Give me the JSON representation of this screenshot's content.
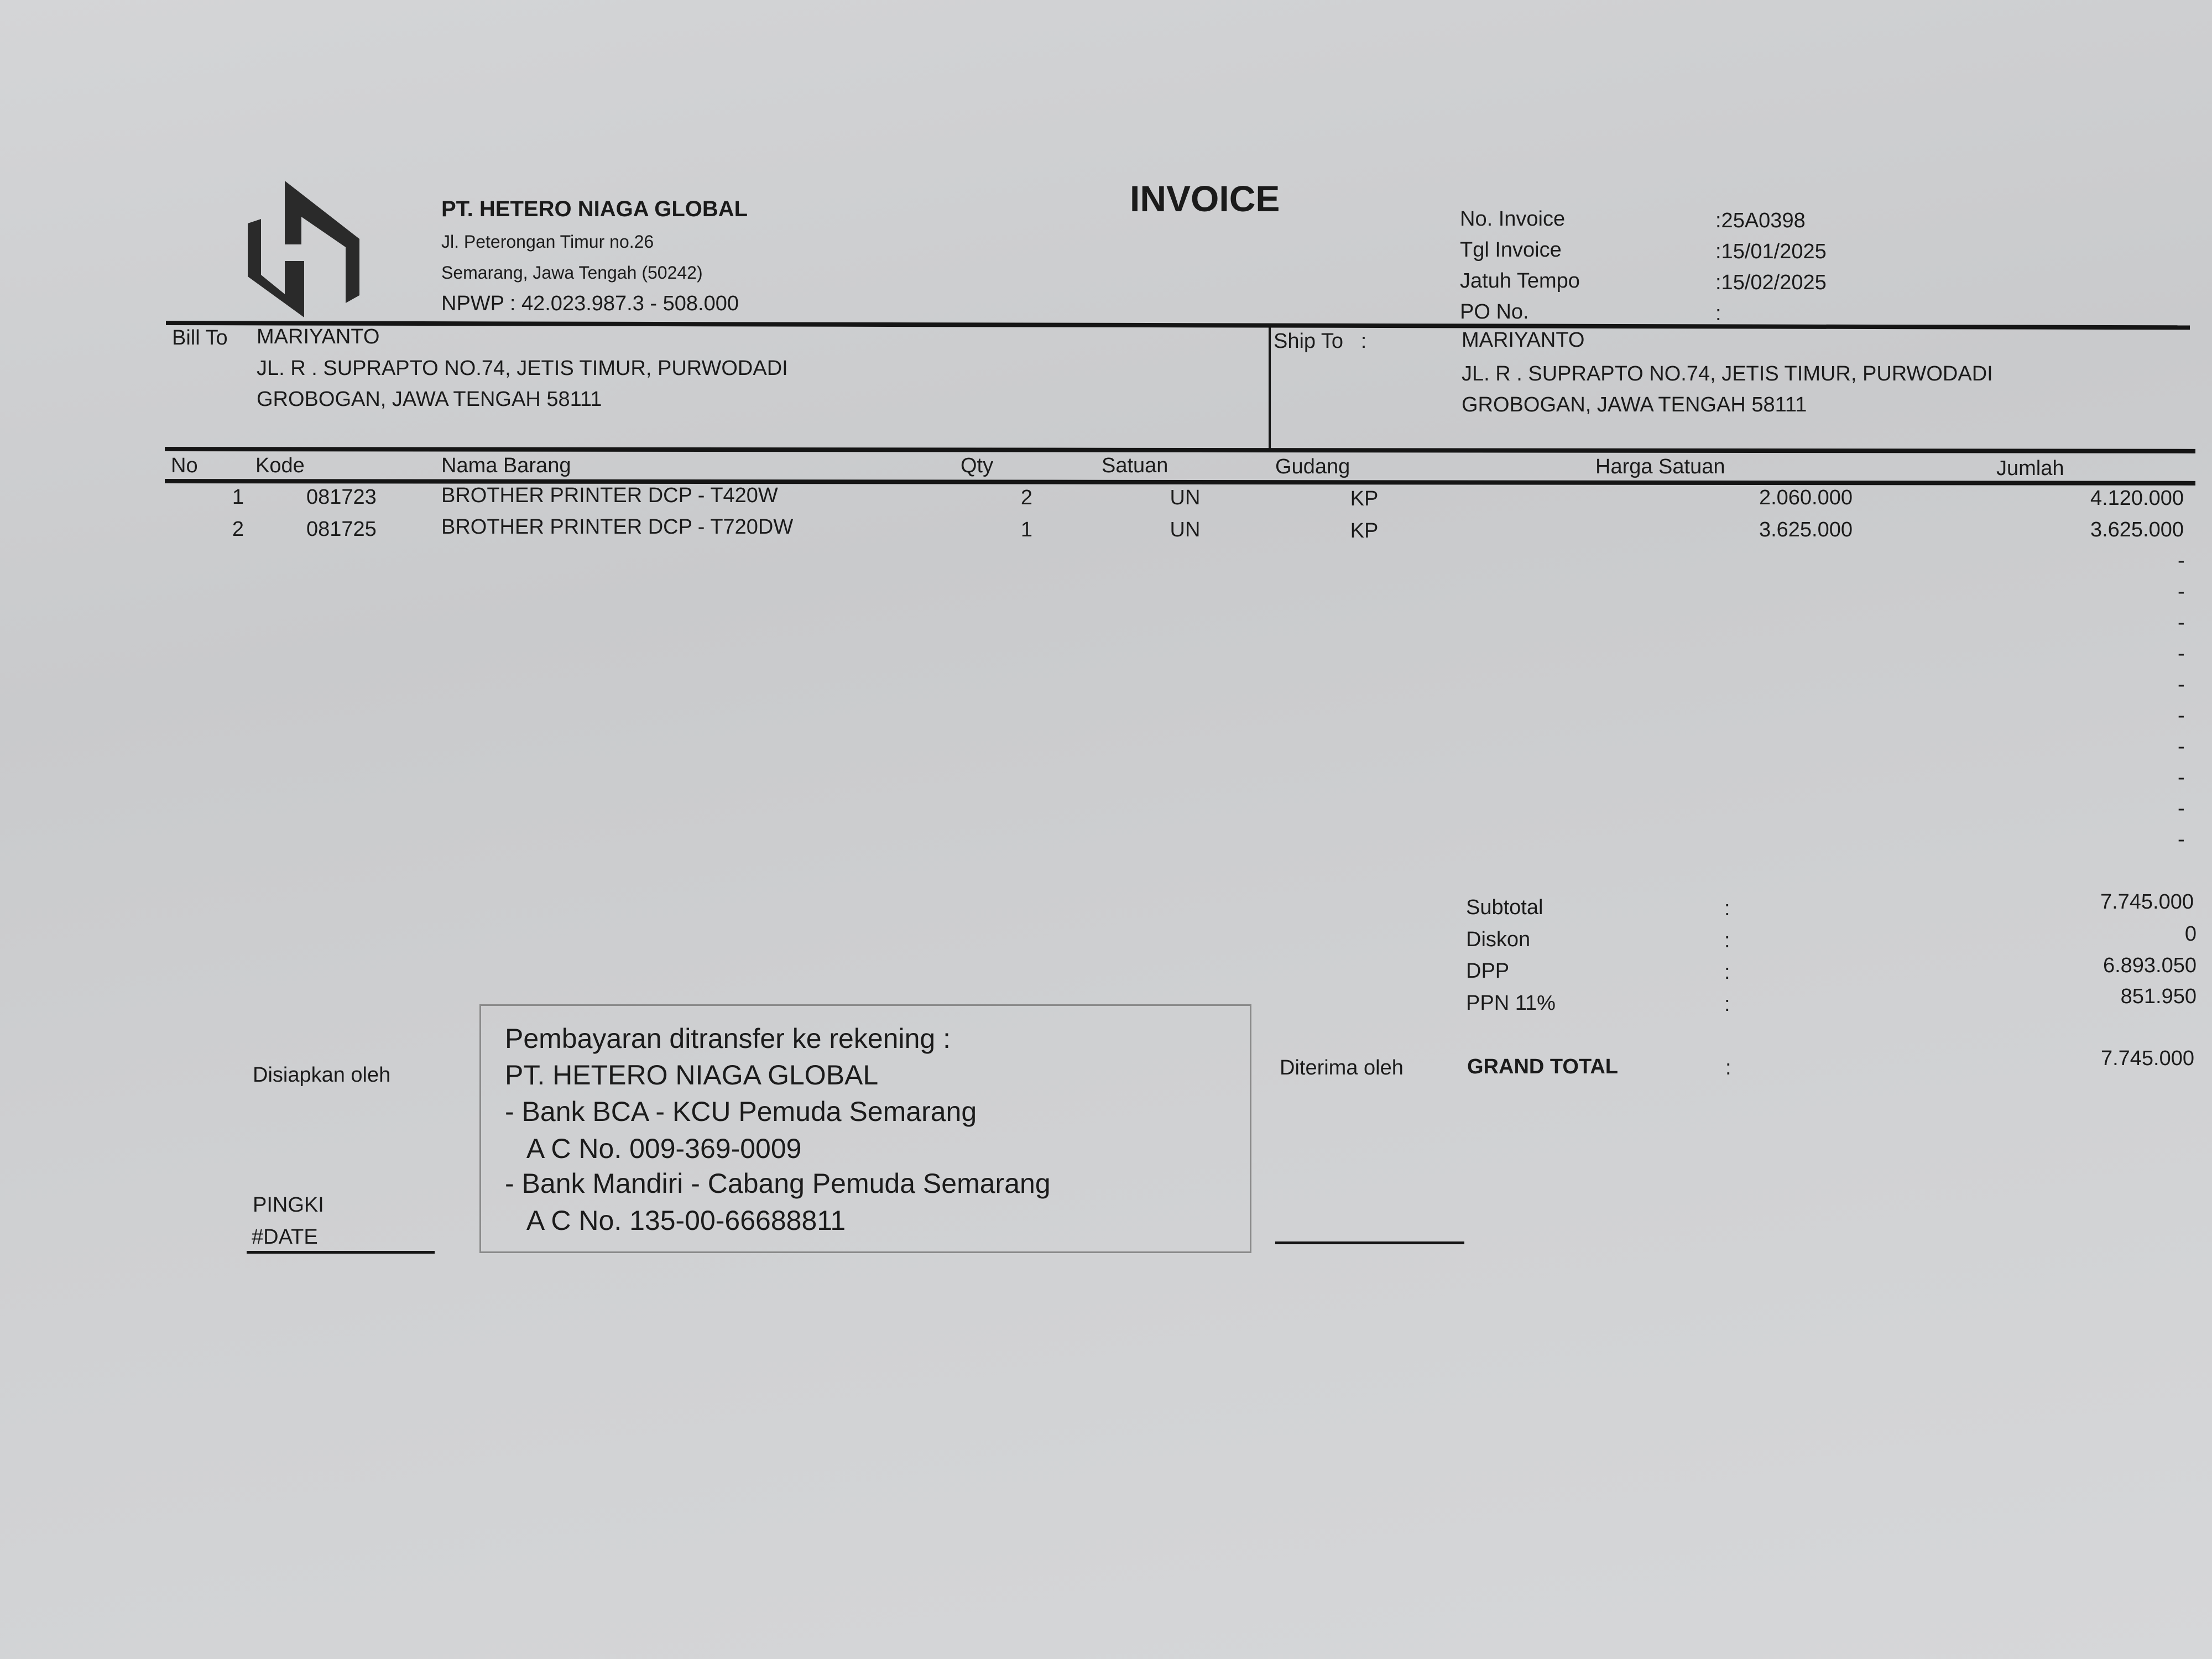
{
  "company": {
    "name": "PT. HETERO NIAGA GLOBAL",
    "address1": "Jl. Peterongan Timur no.26",
    "address2": "Semarang, Jawa Tengah (50242)",
    "npwp": "NPWP : 42.023.987.3 - 508.000",
    "logo_icon": "hexagon-h-logo"
  },
  "title": "INVOICE",
  "meta": [
    {
      "label": "No. Invoice",
      "value": ":25A0398"
    },
    {
      "label": "Tgl Invoice",
      "value": ":15/01/2025"
    },
    {
      "label": "Jatuh Tempo",
      "value": ":15/02/2025"
    },
    {
      "label": "PO No.",
      "value": ":"
    }
  ],
  "bill_to": {
    "label": "Bill To",
    "name": "MARIYANTO",
    "line1": "JL. R . SUPRAPTO NO.74, JETIS TIMUR, PURWODADI",
    "line2": "GROBOGAN, JAWA TENGAH 58111"
  },
  "ship_to": {
    "label": "Ship To   :",
    "name": "MARIYANTO",
    "line1": "JL. R . SUPRAPTO NO.74, JETIS TIMUR, PURWODADI",
    "line2": "GROBOGAN, JAWA TENGAH 58111"
  },
  "table": {
    "headers": [
      "No",
      "Kode",
      "Nama Barang",
      "Qty",
      "Satuan",
      "Gudang",
      "Harga Satuan",
      "Jumlah"
    ],
    "rows": [
      {
        "no": "1",
        "kode": "081723",
        "nama": "BROTHER PRINTER DCP - T420W",
        "qty": "2",
        "satuan": "UN",
        "gudang": "KP",
        "harga": "2.060.000",
        "jumlah": "4.120.000"
      },
      {
        "no": "2",
        "kode": "081725",
        "nama": "BROTHER PRINTER DCP - T720DW",
        "qty": "1",
        "satuan": "UN",
        "gudang": "KP",
        "harga": "3.625.000",
        "jumlah": "3.625.000"
      }
    ],
    "empty_marker": "-"
  },
  "totals": [
    {
      "label": "Subtotal",
      "value": "7.745.000"
    },
    {
      "label": "Diskon",
      "value": "0"
    },
    {
      "label": "DPP",
      "value": "6.893.050"
    },
    {
      "label": "PPN 11%",
      "value": "851.950"
    }
  ],
  "grand_total": {
    "label": "GRAND TOTAL",
    "value": "7.745.000"
  },
  "colon": ":",
  "prepared": {
    "label": "Disiapkan oleh",
    "name": "PINGKI",
    "date": "#DATE"
  },
  "received": {
    "label": "Diterima oleh"
  },
  "payment": [
    "Pembayaran ditransfer ke rekening :",
    "PT. HETERO NIAGA GLOBAL",
    "- Bank BCA - KCU Pemuda Semarang",
    "   A C No. 009-369-0009",
    "- Bank Mandiri - Cabang Pemuda Semarang",
    "   A C No. 135-00-66688811"
  ]
}
